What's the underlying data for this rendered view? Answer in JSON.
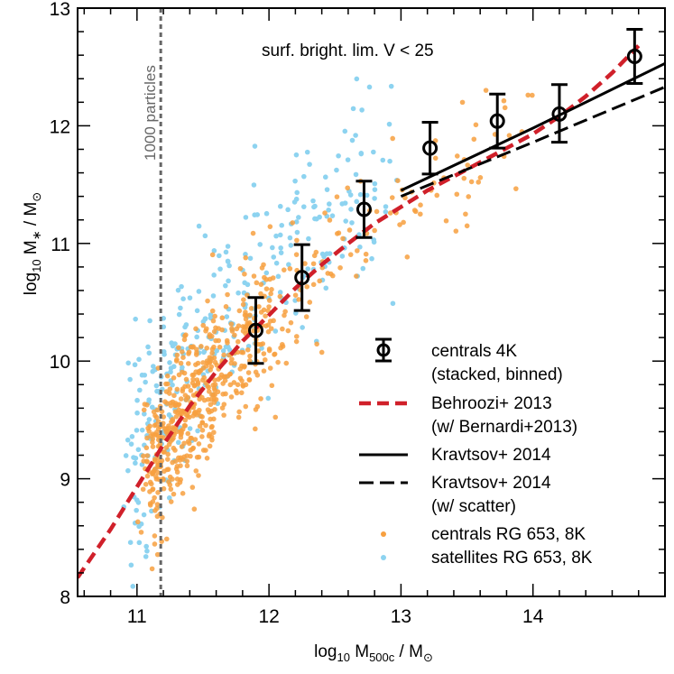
{
  "chart_data": {
    "type": "scatter",
    "xlabel": "log₁₀ M₅₀₀c / M⊙",
    "ylabel": "log₁₀ M∗ / M⊙",
    "xlim": [
      10.55,
      15.0
    ],
    "ylim": [
      8,
      13
    ],
    "xticks": [
      11,
      12,
      13,
      14
    ],
    "yticks": [
      8,
      9,
      10,
      11,
      12,
      13
    ],
    "annotation": "surf. bright. lim. V < 25",
    "vline": {
      "x": 11.18,
      "label": "1000 particles",
      "color": "#666666"
    },
    "legend_position": "bottom-right",
    "series": [
      {
        "name": "centrals 4K",
        "name_line2": "(stacked, binned)",
        "kind": "errorbar",
        "color": "#000000",
        "x": [
          11.9,
          12.25,
          12.72,
          13.22,
          13.73,
          14.2,
          14.77
        ],
        "y": [
          10.26,
          10.71,
          11.29,
          11.81,
          12.04,
          12.1,
          12.59
        ],
        "ylow": [
          9.98,
          10.43,
          11.05,
          11.59,
          11.81,
          11.86,
          12.36
        ],
        "yhigh": [
          10.54,
          10.99,
          11.53,
          12.03,
          12.27,
          12.35,
          12.82
        ]
      },
      {
        "name": "Behroozi+ 2013",
        "name_line2": "(w/ Bernardi+2013)",
        "kind": "line",
        "style": "dashed-thick",
        "color": "#d0202a",
        "x": [
          10.55,
          10.8,
          11.0,
          11.2,
          11.4,
          11.6,
          11.8,
          12.0,
          12.2,
          12.4,
          12.6,
          12.8,
          13.0,
          13.2,
          13.4,
          13.6,
          13.8,
          14.0,
          14.2,
          14.4,
          14.6,
          14.8
        ],
        "y": [
          8.16,
          8.57,
          8.93,
          9.29,
          9.62,
          9.91,
          10.17,
          10.39,
          10.62,
          10.82,
          11.0,
          11.17,
          11.31,
          11.45,
          11.57,
          11.69,
          11.81,
          11.93,
          12.08,
          12.25,
          12.45,
          12.68
        ]
      },
      {
        "name": "Kravtsov+ 2014",
        "kind": "line",
        "style": "solid",
        "color": "#000000",
        "x": [
          13.0,
          14.0,
          15.0
        ],
        "y": [
          11.45,
          11.98,
          12.53
        ]
      },
      {
        "name": "Kravtsov+ 2014",
        "name_line2": "(w/ scatter)",
        "kind": "line",
        "style": "dashed",
        "color": "#000000",
        "x": [
          13.0,
          14.0,
          15.0
        ],
        "y": [
          11.4,
          11.86,
          12.33
        ]
      },
      {
        "name": "centrals RG 653, 8K",
        "kind": "scatter",
        "color": "#f7a040",
        "seed": 653,
        "count": 620
      },
      {
        "name": "satellites RG 653, 8K",
        "kind": "scatter",
        "color": "#8dd3f0",
        "seed": 8,
        "count": 330
      }
    ]
  }
}
